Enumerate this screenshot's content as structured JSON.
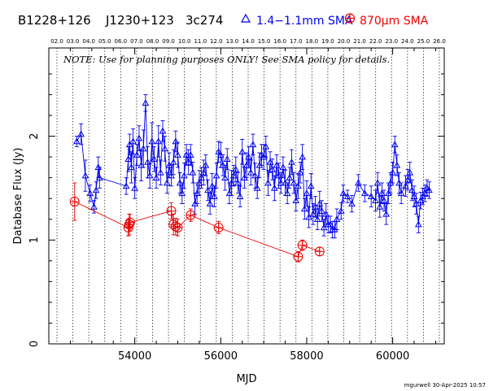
{
  "header": {
    "source_names": [
      "B1228+126",
      "J1230+123",
      "3c274"
    ],
    "legend": [
      {
        "symbol": "triangle",
        "label": "1.4−1.1mm SMA",
        "color": "#0000ee"
      },
      {
        "symbol": "circle-plus",
        "label": "870μm SMA",
        "color": "#ee0000"
      }
    ]
  },
  "note": "NOTE: Use for planning purposes ONLY!  See SMA policy for details.",
  "credit": "mgurwell 30-Apr-2025 10:57",
  "colors": {
    "blue_series": "#0000ee",
    "red_series": "#ee0000",
    "axes": "#000000"
  },
  "chart_data": {
    "type": "scatter",
    "title": "",
    "xlabel": "MJD",
    "ylabel": "Database Flux (Jy)",
    "xlim": [
      52000,
      61200
    ],
    "ylim": [
      0,
      2.85
    ],
    "x_ticks": [
      54000,
      56000,
      58000,
      60000
    ],
    "x_tick_labels": [
      "54000",
      "56000",
      "58000",
      "60000"
    ],
    "y_ticks": [
      0,
      1,
      2
    ],
    "y_tick_labels": [
      "0",
      "1",
      "2"
    ],
    "top_axis_labels": [
      "02.0",
      "03.0",
      "04.0",
      "05.0",
      "06.0",
      "07.0",
      "08.0",
      "09.0",
      "10.0",
      "11.0",
      "12.0",
      "13.0",
      "14.0",
      "15.0",
      "16.0",
      "17.0",
      "18.0",
      "19.0",
      "20.0",
      "21.0",
      "22.0",
      "23.0",
      "24.0",
      "25.0",
      "26.0"
    ],
    "series": [
      {
        "name": "1.4−1.1mm SMA",
        "marker": "triangle",
        "color": "#0000ee",
        "x": [
          52650,
          52750,
          52850,
          52960,
          53050,
          53100,
          53150,
          53180,
          53800,
          53850,
          53880,
          53920,
          53960,
          54000,
          54050,
          54100,
          54150,
          54200,
          54250,
          54300,
          54350,
          54400,
          54450,
          54500,
          54550,
          54600,
          54650,
          54700,
          54750,
          54800,
          54850,
          54900,
          54950,
          55000,
          55050,
          55100,
          55150,
          55200,
          55250,
          55300,
          55350,
          55400,
          55450,
          55500,
          55550,
          55600,
          55650,
          55700,
          55750,
          55800,
          55850,
          55900,
          55950,
          56000,
          56050,
          56100,
          56150,
          56200,
          56250,
          56300,
          56350,
          56400,
          56450,
          56500,
          56550,
          56600,
          56650,
          56700,
          56750,
          56800,
          56850,
          56900,
          56950,
          57000,
          57050,
          57100,
          57150,
          57200,
          57250,
          57300,
          57350,
          57400,
          57450,
          57500,
          57550,
          57600,
          57650,
          57700,
          57750,
          57800,
          57850,
          57900,
          57950,
          58000,
          58050,
          58100,
          58150,
          58200,
          58250,
          58300,
          58350,
          58400,
          58450,
          58500,
          58550,
          58600,
          58650,
          58700,
          58800,
          58850,
          58950,
          59050,
          59200,
          59350,
          59500,
          59600,
          59650,
          59700,
          59750,
          59800,
          59850,
          59900,
          59950,
          60000,
          60050,
          60100,
          60150,
          60200,
          60300,
          60350,
          60400,
          60450,
          60500,
          60550,
          60600,
          60650,
          60700,
          60750,
          60800,
          60850
        ],
        "y": [
          1.95,
          2.02,
          1.62,
          1.45,
          1.32,
          1.48,
          1.7,
          1.6,
          1.52,
          1.78,
          1.92,
          1.7,
          1.95,
          1.5,
          1.82,
          1.98,
          1.72,
          1.88,
          2.32,
          1.75,
          1.62,
          1.95,
          1.78,
          1.6,
          1.95,
          1.65,
          2.05,
          1.88,
          1.55,
          1.72,
          1.62,
          1.75,
          1.95,
          1.82,
          1.55,
          1.45,
          1.62,
          1.82,
          1.75,
          1.82,
          1.65,
          1.35,
          1.45,
          1.55,
          1.6,
          1.65,
          1.72,
          1.48,
          1.35,
          1.52,
          1.42,
          1.62,
          1.85,
          1.82,
          1.72,
          1.6,
          1.78,
          1.45,
          1.55,
          1.62,
          1.68,
          1.55,
          1.42,
          1.85,
          1.6,
          1.72,
          1.8,
          1.65,
          1.92,
          1.62,
          1.5,
          1.72,
          1.82,
          1.8,
          1.9,
          1.55,
          1.75,
          1.68,
          1.5,
          1.72,
          1.62,
          1.55,
          1.7,
          1.55,
          1.45,
          1.6,
          1.75,
          1.55,
          1.38,
          1.52,
          1.65,
          1.8,
          1.3,
          1.45,
          1.22,
          1.52,
          1.25,
          1.32,
          1.2,
          1.35,
          1.28,
          1.12,
          1.25,
          1.15,
          1.15,
          1.1,
          1.1,
          1.2,
          1.28,
          1.45,
          1.42,
          1.35,
          1.55,
          1.45,
          1.42,
          1.38,
          1.55,
          1.32,
          1.45,
          1.38,
          1.25,
          1.45,
          1.55,
          1.65,
          1.92,
          1.72,
          1.55,
          1.45,
          1.52,
          1.58,
          1.65,
          1.48,
          1.42,
          1.35,
          1.15,
          1.38,
          1.42,
          1.45,
          1.5,
          1.48
        ],
        "err": [
          0.05,
          0.1,
          0.15,
          0.08,
          0.06,
          0.08,
          0.1,
          0.1,
          0.08,
          0.12,
          0.1,
          0.15,
          0.12,
          0.1,
          0.1,
          0.12,
          0.15,
          0.18,
          0.08,
          0.15,
          0.12,
          0.18,
          0.12,
          0.1,
          0.15,
          0.12,
          0.1,
          0.12,
          0.1,
          0.12,
          0.1,
          0.12,
          0.1,
          0.12,
          0.1,
          0.1,
          0.12,
          0.1,
          0.12,
          0.1,
          0.1,
          0.1,
          0.1,
          0.12,
          0.1,
          0.12,
          0.1,
          0.1,
          0.1,
          0.12,
          0.1,
          0.12,
          0.1,
          0.12,
          0.1,
          0.12,
          0.1,
          0.1,
          0.12,
          0.1,
          0.12,
          0.1,
          0.1,
          0.12,
          0.1,
          0.12,
          0.1,
          0.12,
          0.1,
          0.12,
          0.1,
          0.12,
          0.1,
          0.12,
          0.1,
          0.12,
          0.1,
          0.1,
          0.12,
          0.1,
          0.12,
          0.1,
          0.1,
          0.12,
          0.1,
          0.1,
          0.12,
          0.1,
          0.1,
          0.12,
          0.1,
          0.12,
          0.1,
          0.12,
          0.1,
          0.12,
          0.1,
          0.1,
          0.1,
          0.12,
          0.1,
          0.08,
          0.1,
          0.08,
          0.08,
          0.08,
          0.08,
          0.1,
          0.08,
          0.08,
          0.06,
          0.08,
          0.08,
          0.08,
          0.1,
          0.1,
          0.1,
          0.1,
          0.1,
          0.1,
          0.1,
          0.1,
          0.1,
          0.1,
          0.08,
          0.1,
          0.1,
          0.1,
          0.1,
          0.1,
          0.1,
          0.1,
          0.1,
          0.1,
          0.08,
          0.08,
          0.08,
          0.08,
          0.08,
          0.08
        ]
      },
      {
        "name": "870μm SMA",
        "marker": "circle-plus",
        "color": "#ee0000",
        "x": [
          52600,
          53850,
          53870,
          53890,
          54850,
          54900,
          54950,
          55000,
          55300,
          55950,
          57800,
          57900,
          58300
        ],
        "y": [
          1.37,
          1.12,
          1.15,
          1.17,
          1.28,
          1.15,
          1.13,
          1.12,
          1.24,
          1.12,
          0.84,
          0.95,
          0.89
        ],
        "err": [
          0.18,
          0.08,
          0.1,
          0.08,
          0.08,
          0.1,
          0.08,
          0.08,
          0.06,
          0.06,
          0.05,
          0.05,
          0.04
        ]
      }
    ],
    "vertical_reference_lines": true,
    "grid": false
  }
}
